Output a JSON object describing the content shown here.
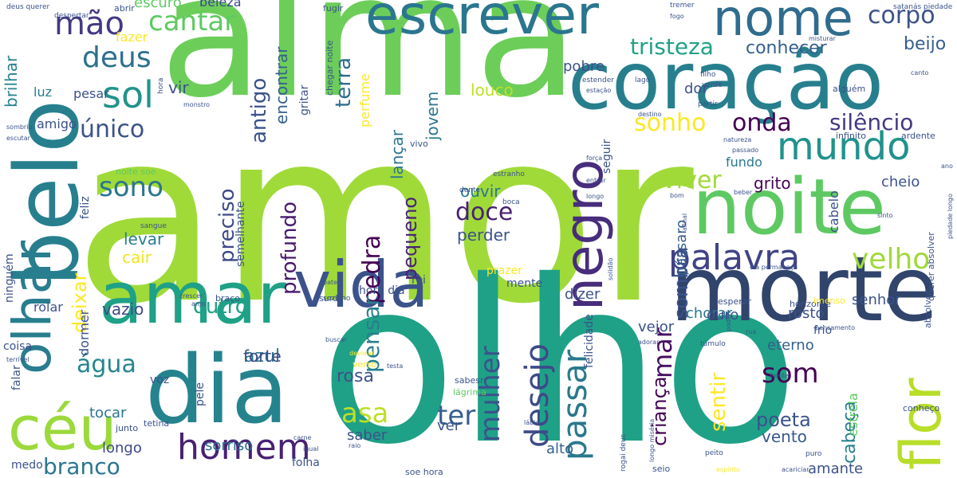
{
  "palette": [
    "#440154",
    "#46337e",
    "#365c8d",
    "#277f8e",
    "#1fa187",
    "#4ac16d",
    "#a0da39",
    "#fde725"
  ],
  "words": [
    {
      "text": "amor"
    },
    {
      "text": "olho"
    },
    {
      "text": "alma"
    },
    {
      "text": "belo"
    },
    {
      "text": "noite"
    },
    {
      "text": "morte"
    },
    {
      "text": "coração"
    },
    {
      "text": "escrever"
    },
    {
      "text": "nome"
    },
    {
      "text": "amar"
    },
    {
      "text": "dia"
    },
    {
      "text": "vida"
    },
    {
      "text": "olhar"
    },
    {
      "text": "céu"
    },
    {
      "text": "negro"
    },
    {
      "text": "flor"
    },
    {
      "text": "mundo"
    },
    {
      "text": "palavra"
    },
    {
      "text": "homem"
    },
    {
      "text": "passar"
    },
    {
      "text": "desejo"
    },
    {
      "text": "mulher"
    },
    {
      "text": "sol"
    },
    {
      "text": "mão"
    },
    {
      "text": "cantar"
    },
    {
      "text": "corpo"
    },
    {
      "text": "tristeza"
    },
    {
      "text": "conhecer"
    },
    {
      "text": "beijo"
    },
    {
      "text": "deus"
    },
    {
      "text": "único"
    },
    {
      "text": "sonho"
    },
    {
      "text": "onda"
    },
    {
      "text": "silêncio"
    },
    {
      "text": "viver"
    },
    {
      "text": "velho"
    },
    {
      "text": "sono"
    },
    {
      "text": "doce"
    },
    {
      "text": "perder"
    },
    {
      "text": "ouvir"
    },
    {
      "text": "pedra"
    },
    {
      "text": "pequeno"
    },
    {
      "text": "profundo"
    },
    {
      "text": "preciso"
    },
    {
      "text": "levar"
    },
    {
      "text": "cair"
    },
    {
      "text": "água"
    },
    {
      "text": "azul"
    },
    {
      "text": "forte"
    },
    {
      "text": "outro"
    },
    {
      "text": "vazio"
    },
    {
      "text": "rosa"
    },
    {
      "text": "asa"
    },
    {
      "text": "ter"
    },
    {
      "text": "som"
    },
    {
      "text": "poeta"
    },
    {
      "text": "vento"
    },
    {
      "text": "mar"
    },
    {
      "text": "criança"
    },
    {
      "text": "cabeça"
    },
    {
      "text": "sombra"
    },
    {
      "text": "pássaro"
    },
    {
      "text": "sentir"
    },
    {
      "text": "branco"
    },
    {
      "text": "longo"
    },
    {
      "text": "tocar"
    },
    {
      "text": "sorriso"
    },
    {
      "text": "ver"
    },
    {
      "text": "saber"
    },
    {
      "text": "alto"
    },
    {
      "text": "dizer"
    },
    {
      "text": "chorar"
    },
    {
      "text": "eterno"
    },
    {
      "text": "amante"
    },
    {
      "text": "rosto"
    },
    {
      "text": "senhor"
    },
    {
      "text": "ouro"
    },
    {
      "text": "vejor"
    },
    {
      "text": "pensar"
    },
    {
      "text": "terra"
    },
    {
      "text": "antigo"
    },
    {
      "text": "encontrar"
    },
    {
      "text": "lançar"
    },
    {
      "text": "jovem"
    },
    {
      "text": "louco"
    },
    {
      "text": "pobre"
    },
    {
      "text": "dor"
    },
    {
      "text": "fazer"
    },
    {
      "text": "escuro"
    },
    {
      "text": "beleza"
    },
    {
      "text": "luz"
    },
    {
      "text": "amigo"
    },
    {
      "text": "brilhar"
    },
    {
      "text": "vir"
    },
    {
      "text": "pesar"
    },
    {
      "text": "grito"
    },
    {
      "text": "cheio"
    },
    {
      "text": "fundo"
    },
    {
      "text": "cabelo"
    },
    {
      "text": "deixar"
    },
    {
      "text": "dormer"
    },
    {
      "text": "rolar"
    },
    {
      "text": "feliz"
    },
    {
      "text": "falar"
    },
    {
      "text": "ninguém"
    },
    {
      "text": "coisa"
    },
    {
      "text": "voz"
    },
    {
      "text": "pele"
    },
    {
      "text": "medo"
    },
    {
      "text": "folha"
    },
    {
      "text": "prazer"
    },
    {
      "text": "mente"
    },
    {
      "text": "rei"
    },
    {
      "text": "hora dia"
    },
    {
      "text": "estrela"
    },
    {
      "text": "felicidade"
    },
    {
      "text": "seguir"
    },
    {
      "text": "perfume"
    },
    {
      "text": "gritar"
    },
    {
      "text": "semelhante"
    },
    {
      "text": "chegar noite"
    },
    {
      "text": "vivo"
    },
    {
      "text": "fugir"
    },
    {
      "text": "abrir"
    },
    {
      "text": "despertar"
    },
    {
      "text": "deus querer"
    },
    {
      "text": "sombrio"
    },
    {
      "text": "escutar"
    },
    {
      "text": "noite soe"
    },
    {
      "text": "sangue"
    },
    {
      "text": "boca"
    },
    {
      "text": "dente"
    },
    {
      "text": "estranho"
    },
    {
      "text": "monstro"
    },
    {
      "text": "hora"
    },
    {
      "text": "misturar"
    },
    {
      "text": "tremer"
    },
    {
      "text": "fogo"
    },
    {
      "text": "estender"
    },
    {
      "text": "lago"
    },
    {
      "text": "filho"
    },
    {
      "text": "verde"
    },
    {
      "text": "partir"
    },
    {
      "text": "estação"
    },
    {
      "text": "destino"
    },
    {
      "text": "alguém"
    },
    {
      "text": "canto"
    },
    {
      "text": "infinito"
    },
    {
      "text": "ardente"
    },
    {
      "text": "natureza"
    },
    {
      "text": "passado"
    },
    {
      "text": "ano"
    },
    {
      "text": "força"
    },
    {
      "text": "entrar"
    },
    {
      "text": "bom"
    },
    {
      "text": "beber"
    },
    {
      "text": "sinto"
    },
    {
      "text": "longo"
    },
    {
      "text": "piedade longo"
    },
    {
      "text": "afinal"
    },
    {
      "text": "solidão"
    },
    {
      "text": "dia permaneço"
    },
    {
      "text": "esperar"
    },
    {
      "text": "horizonte"
    },
    {
      "text": "imenso"
    },
    {
      "text": "frio"
    },
    {
      "text": "poder"
    },
    {
      "text": "pensamento"
    },
    {
      "text": "absolver"
    },
    {
      "text": "querer absolver"
    },
    {
      "text": "satanás piedade"
    },
    {
      "text": "túmulo"
    },
    {
      "text": "adorar"
    },
    {
      "text": "rua"
    },
    {
      "text": "frente"
    },
    {
      "text": "terrível"
    },
    {
      "text": "crescer"
    },
    {
      "text": "anjo"
    },
    {
      "text": "bater"
    },
    {
      "text": "sozinho"
    },
    {
      "text": "buscar"
    },
    {
      "text": "braço"
    },
    {
      "text": "surdo"
    },
    {
      "text": "devorar"
    },
    {
      "text": "verso"
    },
    {
      "text": "testa"
    },
    {
      "text": "sabesr"
    },
    {
      "text": "lágrima"
    },
    {
      "text": "lábio"
    },
    {
      "text": "rogai deus"
    },
    {
      "text": "longo miséria"
    },
    {
      "text": "carne"
    },
    {
      "text": "igual"
    },
    {
      "text": "raio"
    },
    {
      "text": "soe hora"
    },
    {
      "text": "seio"
    },
    {
      "text": "espírito"
    },
    {
      "text": "acariciar"
    },
    {
      "text": "peito"
    },
    {
      "text": "puro"
    },
    {
      "text": "conheço"
    },
    {
      "text": "junto"
    },
    {
      "text": "tetina"
    }
  ]
}
